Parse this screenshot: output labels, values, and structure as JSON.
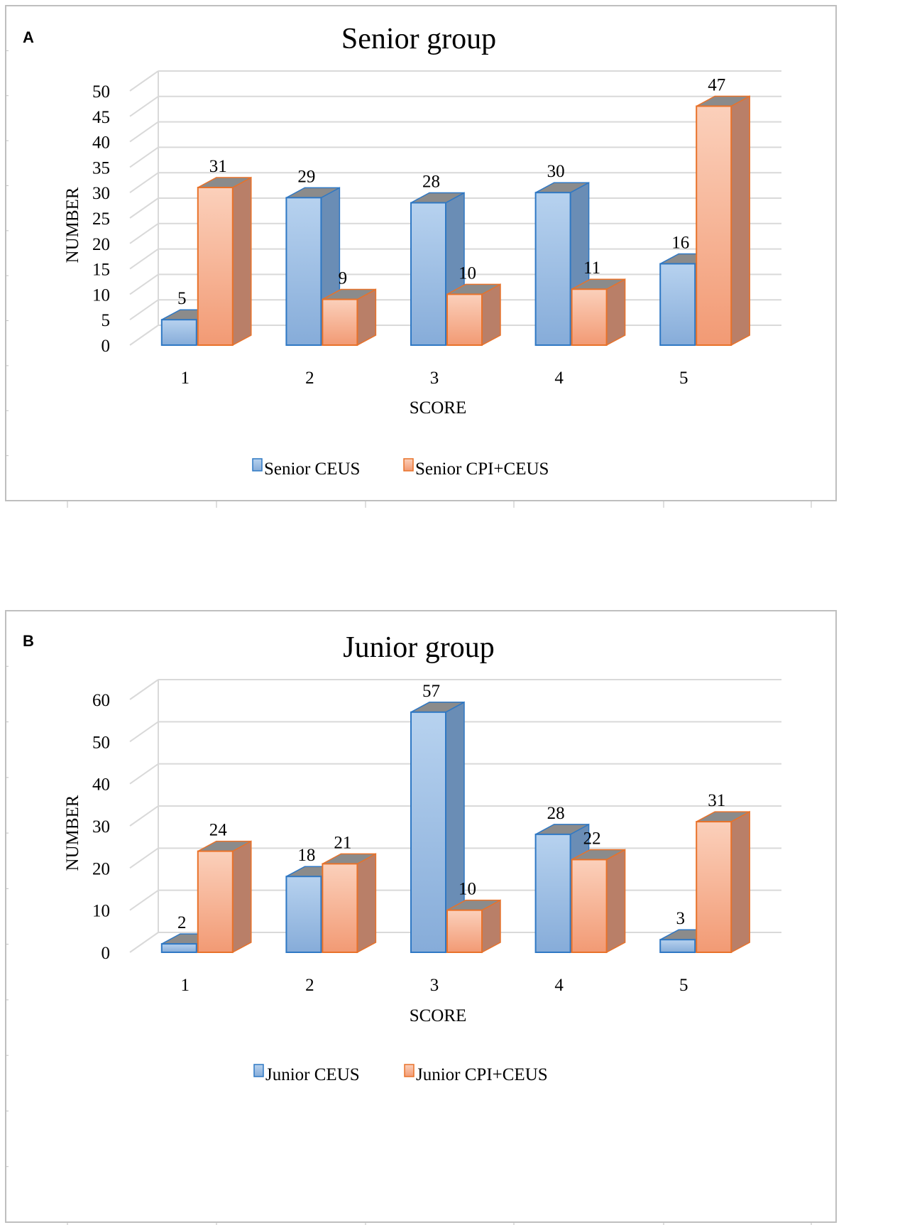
{
  "colors": {
    "blue_face": "#a9c8ea",
    "blue_face_dark": "#7fa6d6",
    "blue_side": "#6a8db5",
    "blue_edge": "#2f78c4",
    "orange_face": "#f9c4aa",
    "orange_face_dark": "#f19c78",
    "orange_side": "#b97f68",
    "orange_edge": "#e8722a",
    "grid": "#d9d9d9",
    "frame": "#bfbfbf",
    "top_shade": "#8b8b8b"
  },
  "chart_data": [
    {
      "panel_label": "A",
      "type": "bar",
      "title": "Senior group",
      "xlabel": "SCORE",
      "ylabel": "NUMBER",
      "categories": [
        "1",
        "2",
        "3",
        "4",
        "5"
      ],
      "ylim": [
        0,
        50
      ],
      "yticks": [
        "0",
        "5",
        "10",
        "15",
        "20",
        "25",
        "30",
        "35",
        "40",
        "45",
        "50"
      ],
      "series": [
        {
          "name": "Senior CEUS",
          "values": [
            5,
            29,
            28,
            30,
            16
          ],
          "labels": [
            "5",
            "29",
            "28",
            "30",
            "16"
          ]
        },
        {
          "name": "Senior CPI+CEUS",
          "values": [
            31,
            9,
            10,
            11,
            47
          ],
          "labels": [
            "31",
            "9",
            "10",
            "11",
            "47"
          ]
        }
      ]
    },
    {
      "panel_label": "B",
      "type": "bar",
      "title": "Junior group",
      "xlabel": "SCORE",
      "ylabel": "NUMBER",
      "categories": [
        "1",
        "2",
        "3",
        "4",
        "5"
      ],
      "ylim": [
        0,
        60
      ],
      "yticks": [
        "0",
        "10",
        "20",
        "30",
        "40",
        "50",
        "60"
      ],
      "series": [
        {
          "name": "Junior CEUS",
          "values": [
            2,
            18,
            57,
            28,
            3
          ],
          "labels": [
            "2",
            "18",
            "57",
            "28",
            "3"
          ]
        },
        {
          "name": "Junior CPI+CEUS",
          "values": [
            24,
            21,
            10,
            22,
            31
          ],
          "labels": [
            "24",
            "21",
            "10",
            "22",
            "31"
          ]
        }
      ]
    }
  ]
}
